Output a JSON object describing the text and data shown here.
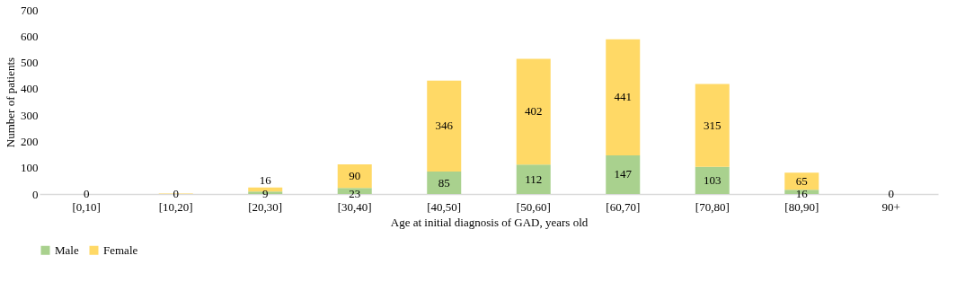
{
  "chart_data": {
    "type": "bar",
    "stacked": true,
    "xlabel": "Age at initial diagnosis of GAD, years old",
    "ylabel": "Number of patients",
    "categories": [
      "[0,10]",
      "[10,20]",
      "[20,30]",
      "[30,40]",
      "[40,50]",
      "[50,60]",
      "[60,70]",
      "[70,80]",
      "[80,90]",
      "90+"
    ],
    "series": [
      {
        "name": "Male",
        "color": "#a9d18e",
        "values": [
          0,
          0,
          9,
          23,
          85,
          112,
          147,
          103,
          16,
          0
        ],
        "value_labels": [
          "0",
          "0",
          "9",
          "23",
          "85",
          "112",
          "147",
          "103",
          "16",
          "0"
        ]
      },
      {
        "name": "Female",
        "color": "#ffd966",
        "values": [
          0,
          2,
          16,
          90,
          346,
          402,
          441,
          315,
          65,
          0
        ],
        "value_labels": [
          null,
          null,
          "16",
          "90",
          "346",
          "402",
          "441",
          "315",
          "65",
          null
        ]
      }
    ],
    "ylim": [
      0,
      700
    ],
    "yticks": [
      0,
      100,
      200,
      300,
      400,
      500,
      600,
      700
    ],
    "grid": false,
    "legend": "bottom"
  }
}
